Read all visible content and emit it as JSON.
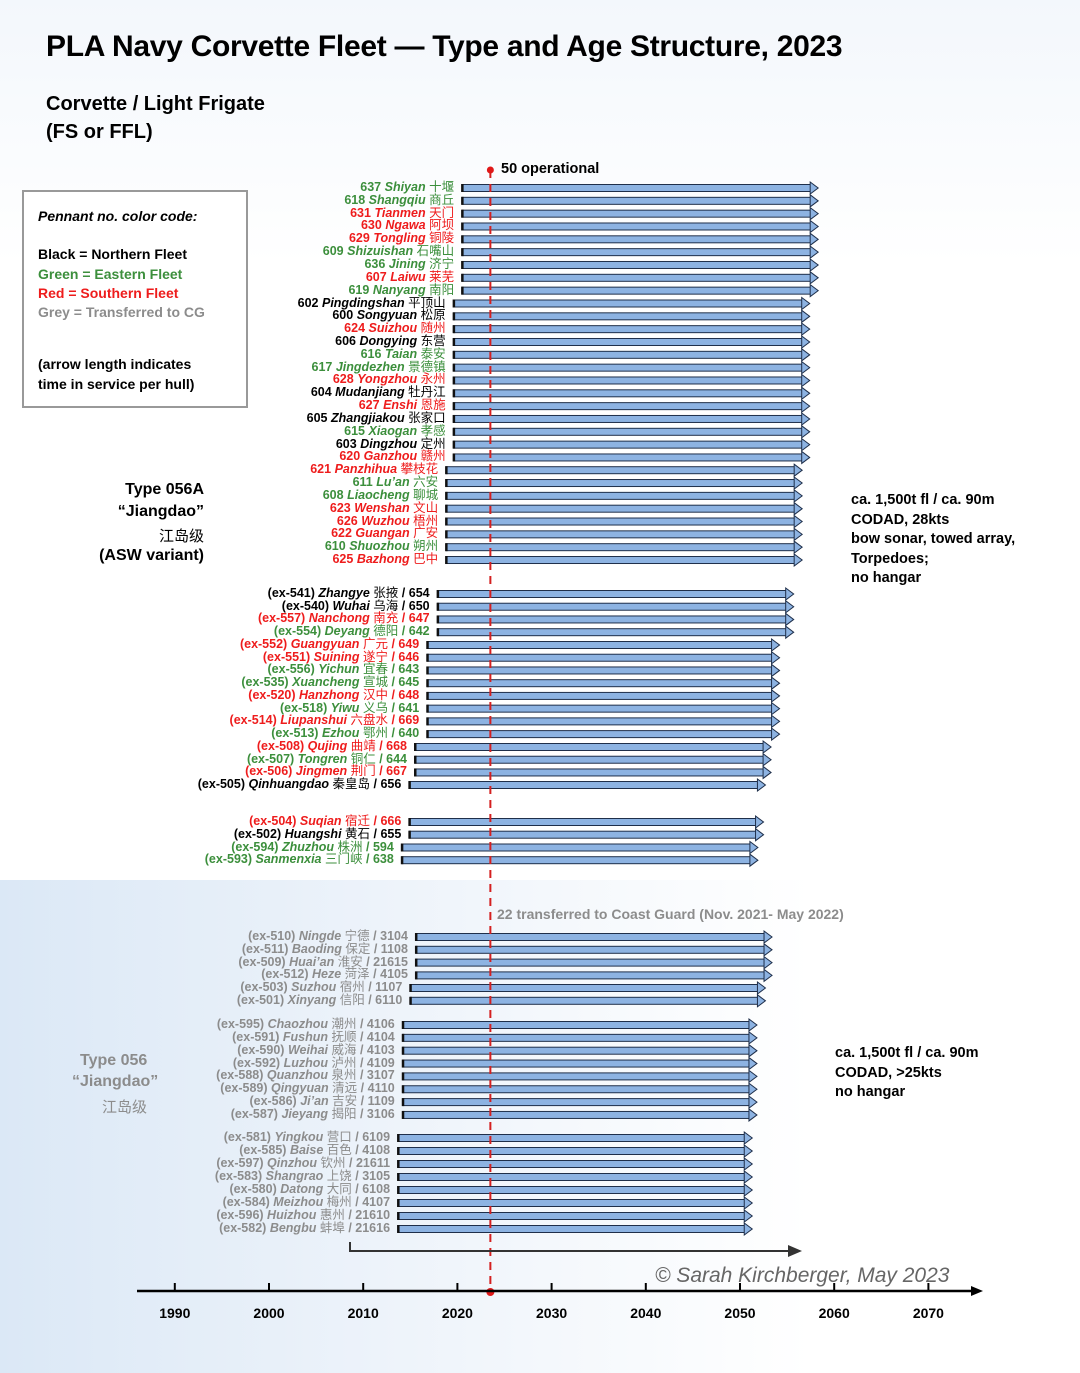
{
  "chart_data": {
    "type": "timeline-bar",
    "title": "PLA Navy Corvette Fleet — Type and Age Structure, 2023",
    "subtitle_line1": "Corvette / Light Frigate",
    "subtitle_line2": "(FS or FFL)",
    "xlabel": "",
    "xlim": [
      1986,
      2077
    ],
    "x_ticks": [
      1990,
      2000,
      2010,
      2020,
      2030,
      2040,
      2050,
      2060,
      2070
    ],
    "reference_year": 2023.5,
    "reference_label": "50 operational",
    "transfer_label": "22 transferred to Coast Guard (Nov. 2021- May 2022)",
    "copyright": "© Sarah Kirchberger, May  2023",
    "fleet_colors": {
      "N": "#000000",
      "E": "#3c8f3c",
      "S": "#ee1c1c",
      "CG": "#8c8c8c"
    },
    "bar_color": "#8db3e2",
    "legend": {
      "title": "Pennant no. color code:",
      "items": [
        {
          "text": "Black = Northern Fleet",
          "fleet": "N"
        },
        {
          "text": "Green = Eastern Fleet",
          "fleet": "E"
        },
        {
          "text": "Red = Southern Fleet",
          "fleet": "S"
        },
        {
          "text": "Grey = Transferred to CG",
          "fleet": "CG"
        }
      ],
      "note_line1": "(arrow length indicates",
      "note_line2": "time in service per hull)"
    },
    "types": [
      {
        "lines": [
          "Type 056A",
          "“Jiangdao”",
          "江岛级",
          "(ASW variant)"
        ],
        "color": "#000000",
        "specs": [
          "ca. 1,500t fl / ca. 90m",
          "CODAD, 28kts",
          "bow sonar, towed array,",
          "Torpedoes;",
          "no hangar"
        ]
      },
      {
        "lines": [
          "Type 056",
          "“Jiangdao”",
          "江岛级"
        ],
        "color": "#8c8c8c",
        "specs": [
          "ca. 1,500t fl / ca. 90m",
          "CODAD, >25kts",
          "no hangar"
        ]
      }
    ],
    "groups": [
      {
        "start": 2020.5,
        "end": 2058.3,
        "ships": [
          {
            "p": "637",
            "n": "Shiyan",
            "c": "十堰",
            "f": "E"
          },
          {
            "p": "618",
            "n": "Shangqiu",
            "c": "商丘",
            "f": "E"
          },
          {
            "p": "631",
            "n": "Tianmen",
            "c": "天门",
            "f": "S"
          },
          {
            "p": "630",
            "n": "Ngawa",
            "c": "阿坝",
            "f": "S"
          },
          {
            "p": "629",
            "n": "Tongling",
            "c": "铜陵",
            "f": "S"
          },
          {
            "p": "609",
            "n": "Shizuishan",
            "c": "石嘴山",
            "f": "E"
          },
          {
            "p": "636",
            "n": "Jining",
            "c": "济宁",
            "f": "E"
          },
          {
            "p": "607",
            "n": "Laiwu",
            "c": "莱芜",
            "f": "S"
          },
          {
            "p": "619",
            "n": "Nanyang",
            "c": "南阳",
            "f": "E"
          }
        ]
      },
      {
        "start": 2019.6,
        "end": 2057.4,
        "ships": [
          {
            "p": "602",
            "n": "Pingdingshan",
            "c": "平顶山",
            "f": "N"
          },
          {
            "p": "600",
            "n": "Songyuan",
            "c": "松原",
            "f": "N"
          },
          {
            "p": "624",
            "n": "Suizhou",
            "c": "随州",
            "f": "S"
          },
          {
            "p": "606",
            "n": "Dongying",
            "c": "东营",
            "f": "N"
          },
          {
            "p": "616",
            "n": "Taian",
            "c": "泰安",
            "f": "E"
          },
          {
            "p": "617",
            "n": "Jingdezhen",
            "c": "景德镇",
            "f": "E"
          },
          {
            "p": "628",
            "n": "Yongzhou",
            "c": "永州",
            "f": "S"
          },
          {
            "p": "604",
            "n": "Mudanjiang",
            "c": "牡丹江",
            "f": "N"
          },
          {
            "p": "627",
            "n": "Enshi",
            "c": "恩施",
            "f": "S"
          },
          {
            "p": "605",
            "n": "Zhangjiakou",
            "c": "张家口",
            "f": "N"
          },
          {
            "p": "615",
            "n": "Xiaogan",
            "c": "孝感",
            "f": "E"
          },
          {
            "p": "603",
            "n": "Dingzhou",
            "c": "定州",
            "f": "N"
          },
          {
            "p": "620",
            "n": "Ganzhou",
            "c": "赣州",
            "f": "S"
          }
        ]
      },
      {
        "start": 2018.8,
        "end": 2056.6,
        "ships": [
          {
            "p": "621",
            "n": "Panzhihua",
            "c": "攀枝花",
            "f": "S"
          },
          {
            "p": "611",
            "n": "Lu’an",
            "c": "六安",
            "f": "E"
          },
          {
            "p": "608",
            "n": "Liaocheng",
            "c": "聊城",
            "f": "E"
          },
          {
            "p": "623",
            "n": "Wenshan",
            "c": "文山",
            "f": "S"
          },
          {
            "p": "626",
            "n": "Wuzhou",
            "c": "梧州",
            "f": "S"
          },
          {
            "p": "622",
            "n": "Guangan",
            "c": "广安",
            "f": "S"
          },
          {
            "p": "610",
            "n": "Shuozhou",
            "c": "朔州",
            "f": "E"
          },
          {
            "p": "625",
            "n": "Bazhong",
            "c": "巴中",
            "f": "S"
          }
        ]
      },
      {
        "start": 2017.9,
        "end": 2055.7,
        "ships": [
          {
            "p": "(ex-541)",
            "n": "Zhangye",
            "c": "张掖",
            "s": "/ 654",
            "f": "N"
          },
          {
            "p": "(ex-540)",
            "n": "Wuhai",
            "c": "乌海",
            "s": "/ 650",
            "f": "N"
          },
          {
            "p": "(ex-557)",
            "n": "Nanchong",
            "c": "南充",
            "s": "/ 647",
            "f": "S"
          },
          {
            "p": "(ex-554)",
            "n": "Deyang",
            "c": "德阳",
            "s": "/ 642",
            "f": "E"
          }
        ]
      },
      {
        "start": 2016.8,
        "end": 2054.2,
        "ships": [
          {
            "p": "(ex-552)",
            "n": "Guangyuan",
            "c": "广元",
            "s": "/ 649",
            "f": "S"
          },
          {
            "p": "(ex-551)",
            "n": "Suining",
            "c": "遂宁",
            "s": "/ 646",
            "f": "S"
          },
          {
            "p": "(ex-556)",
            "n": "Yichun",
            "c": "宜春",
            "s": "/ 643",
            "f": "E"
          },
          {
            "p": "(ex-535)",
            "n": "Xuancheng",
            "c": "宣城",
            "s": "/ 645",
            "f": "E"
          },
          {
            "p": "(ex-520)",
            "n": "Hanzhong",
            "c": "汉中",
            "s": "/ 648",
            "f": "S"
          },
          {
            "p": "(ex-518)",
            "n": "Yiwu",
            "c": "义乌",
            "s": "/ 641",
            "f": "E"
          },
          {
            "p": "(ex-514)",
            "n": "Liupanshui",
            "c": "六盘水",
            "s": "/ 669",
            "f": "S"
          },
          {
            "p": "(ex-513)",
            "n": "Ezhou",
            "c": "鄂州",
            "s": "/ 640",
            "f": "E"
          }
        ]
      },
      {
        "start": 2015.5,
        "end": 2053.3,
        "ships": [
          {
            "p": "(ex-508)",
            "n": "Qujing",
            "c": "曲靖",
            "s": "/ 668",
            "f": "S"
          },
          {
            "p": "(ex-507)",
            "n": "Tongren",
            "c": "铜仁",
            "s": "/ 644",
            "f": "E"
          },
          {
            "p": "(ex-506)",
            "n": "Jingmen",
            "c": "荆门",
            "s": "/ 667",
            "f": "S"
          }
        ]
      },
      {
        "start": 2014.9,
        "end": 2052.7,
        "ships": [
          {
            "p": "(ex-505)",
            "n": "Qinhuangdao",
            "c": "秦皇岛",
            "s": "/ 656",
            "f": "N"
          }
        ]
      },
      {
        "start": 2014.9,
        "end": 2052.5,
        "ships": [
          {
            "p": "(ex-504)",
            "n": "Suqian",
            "c": "宿迁",
            "s": "/ 666",
            "f": "S"
          },
          {
            "p": "(ex-502)",
            "n": "Huangshi",
            "c": "黄石",
            "s": "/ 655",
            "f": "N"
          }
        ]
      },
      {
        "start": 2014.1,
        "end": 2051.9,
        "ships": [
          {
            "p": "(ex-594)",
            "n": "Zhuzhou",
            "c": "株洲",
            "s": "/ 594",
            "f": "E"
          },
          {
            "p": "(ex-593)",
            "n": "Sanmenxia",
            "c": "三门峡",
            "s": "/ 638",
            "f": "E"
          }
        ]
      },
      {
        "start": 2015.6,
        "end": 2053.4,
        "ships": [
          {
            "p": "(ex-510)",
            "n": "Ningde",
            "c": "宁德",
            "s": "/ 3104",
            "f": "CG"
          },
          {
            "p": "(ex-511)",
            "n": "Baoding",
            "c": "保定",
            "s": "/ 1108",
            "f": "CG"
          },
          {
            "p": "(ex-509)",
            "n": "Huai’an",
            "c": "淮安",
            "s": "/ 21615",
            "f": "CG"
          },
          {
            "p": "(ex-512)",
            "n": "Heze",
            "c": "菏泽",
            "s": "/ 4105",
            "f": "CG"
          }
        ]
      },
      {
        "start": 2015.0,
        "end": 2052.7,
        "ships": [
          {
            "p": "(ex-503)",
            "n": "Suzhou",
            "c": "宿州",
            "s": "/ 1107",
            "f": "CG"
          },
          {
            "p": "(ex-501)",
            "n": "Xinyang",
            "c": "信阳",
            "s": "/ 6110",
            "f": "CG"
          }
        ]
      },
      {
        "start": 2014.2,
        "end": 2051.8,
        "ships": [
          {
            "p": "(ex-595)",
            "n": "Chaozhou",
            "c": "潮州",
            "s": "/ 4106",
            "f": "CG"
          },
          {
            "p": "(ex-591)",
            "n": "Fushun",
            "c": "抚顺",
            "s": "/ 4104",
            "f": "CG"
          },
          {
            "p": "(ex-590)",
            "n": "Weihai",
            "c": "威海",
            "s": "/ 4103",
            "f": "CG"
          },
          {
            "p": "(ex-592)",
            "n": "Luzhou",
            "c": "泸州",
            "s": "/ 4109",
            "f": "CG"
          },
          {
            "p": "(ex-588)",
            "n": "Quanzhou",
            "c": "泉州",
            "s": "/ 3107",
            "f": "CG"
          },
          {
            "p": "(ex-589)",
            "n": "Qingyuan",
            "c": "清远",
            "s": "/ 4110",
            "f": "CG"
          },
          {
            "p": "(ex-586)",
            "n": "Ji’an",
            "c": "吉安",
            "s": "/ 1109",
            "f": "CG"
          },
          {
            "p": "(ex-587)",
            "n": "Jieyang",
            "c": "揭阳",
            "s": "/ 3106",
            "f": "CG"
          }
        ]
      },
      {
        "start": 2013.7,
        "end": 2051.3,
        "ships": [
          {
            "p": "(ex-581)",
            "n": "Yingkou",
            "c": "营口",
            "s": "/ 6109",
            "f": "CG"
          },
          {
            "p": "(ex-585)",
            "n": "Baise",
            "c": "百色",
            "s": "/ 4108",
            "f": "CG"
          },
          {
            "p": "(ex-597)",
            "n": "Qinzhou",
            "c": "钦州",
            "s": "/ 21611",
            "f": "CG"
          },
          {
            "p": "(ex-583)",
            "n": "Shangrao",
            "c": "上饶",
            "s": "/ 3105",
            "f": "CG"
          },
          {
            "p": "(ex-580)",
            "n": "Datong",
            "c": "大同",
            "s": "/ 6108",
            "f": "CG"
          },
          {
            "p": "(ex-584)",
            "n": "Meizhou",
            "c": "梅州",
            "s": "/ 4107",
            "f": "CG"
          },
          {
            "p": "(ex-596)",
            "n": "Huizhou",
            "c": "惠州",
            "s": "/ 21610",
            "f": "CG"
          },
          {
            "p": "(ex-582)",
            "n": "Bengbu",
            "c": "蚌埠",
            "s": "/ 21616",
            "f": "CG"
          }
        ]
      }
    ]
  }
}
